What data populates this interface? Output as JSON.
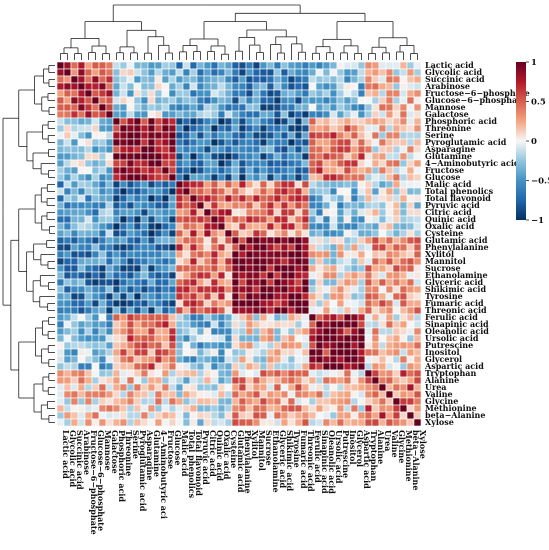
{
  "chart_data": {
    "type": "heatmap",
    "title": "",
    "variables": [
      "Lactic acid",
      "Glycolic acid",
      "Succinic acid",
      "Arabinose",
      "Fructose−6−phosphate",
      "Glucose−6−phosphate",
      "Mannose",
      "Galactose",
      "Phosphoric acid",
      "Threonine",
      "Serine",
      "Pyroglutamic acid",
      "Asparagine",
      "Glutamine",
      "4−Aminobutyric acid",
      "Fructose",
      "Glucose",
      "Malic acid",
      "Total phenolics",
      "Total flavonoid",
      "Pyruvic acid",
      "Citric acid",
      "Quinic acid",
      "Oxalic acid",
      "Cysteine",
      "Glutamic acid",
      "Phenylalanine",
      "Xylitol",
      "Mannitol",
      "Sucrose",
      "Ethanolamine",
      "Glyceric acid",
      "Shikimic acid",
      "Tyrosine",
      "Fumaric acid",
      "Threonic acid",
      "Ferulic acid",
      "Sinapinic acid",
      "Oleanolic acid",
      "Ursolic acid",
      "Putrescine",
      "Inositol",
      "Glycerol",
      "Aspartic acid",
      "Tryptophan",
      "Alanine",
      "Urea",
      "Valine",
      "Glycine",
      "Methionine",
      "beta−Alanine",
      "Xylose"
    ],
    "x_tick_labels": [
      "Lactic acid",
      "Glycolic acid",
      "Succinic acid",
      "Arabinose",
      "Fructose−6−phosphate",
      "Glucose−6−phosphate",
      "Mannose",
      "Galactose",
      "Phosphoric acid",
      "Threonine",
      "Serine",
      "Pyroglutamic acid",
      "Asparagine",
      "Glutamine",
      "4−Aminobutyric aci",
      "Fructose",
      "Glucose",
      "Malic acid",
      "Total phenolics",
      "Total flavonoid",
      "Pyruvic acid",
      "Citric acid",
      "Quinic acid",
      "Oxalic acid",
      "Cysteine",
      "Glutamic acid",
      "Phenylalanine",
      "Xylitol",
      "Mannitol",
      "Sucrose",
      "Ethanolamine",
      "Glyceric acid",
      "Shikimic acid",
      "Tyrosine",
      "Fumaric acid",
      "Threonic acid",
      "Ferulic acid",
      "Sinapinic acid",
      "Oleanolic acid",
      "Ursolic acid",
      "Putrescine",
      "Inositol",
      "Glycerol",
      "Aspartic acid",
      "Tryptophan",
      "Alanine",
      "Urea",
      "Valine",
      "Glycine",
      "Methionine",
      "beta−Alanine",
      "Xylose"
    ],
    "cluster_groups": [
      8,
      9,
      8,
      11,
      8,
      8
    ],
    "within_group_corr": [
      0.6,
      0.8,
      0.5,
      0.85,
      0.8,
      0.45
    ],
    "group_corr": [
      [
        0.6,
        -0.2,
        -0.4,
        -0.6,
        -0.3,
        0.1
      ],
      [
        -0.2,
        0.8,
        -0.75,
        -0.65,
        0.4,
        0.1
      ],
      [
        -0.4,
        -0.75,
        0.5,
        0.4,
        -0.3,
        -0.1
      ],
      [
        -0.6,
        -0.65,
        0.4,
        0.85,
        0.0,
        0.25
      ],
      [
        -0.3,
        0.4,
        -0.3,
        0.0,
        0.8,
        0.1
      ],
      [
        0.1,
        0.1,
        -0.1,
        0.25,
        0.1,
        0.45
      ]
    ],
    "colorbar": {
      "ticks": [
        "1",
        "0.5",
        "0",
        "−0.5",
        "−1"
      ],
      "range": [
        -1,
        1
      ],
      "colors": [
        "#053061",
        "#2166ac",
        "#4393c3",
        "#92c5de",
        "#f7f7f7",
        "#f4a582",
        "#d6604d",
        "#b2182b",
        "#67001f"
      ]
    }
  }
}
